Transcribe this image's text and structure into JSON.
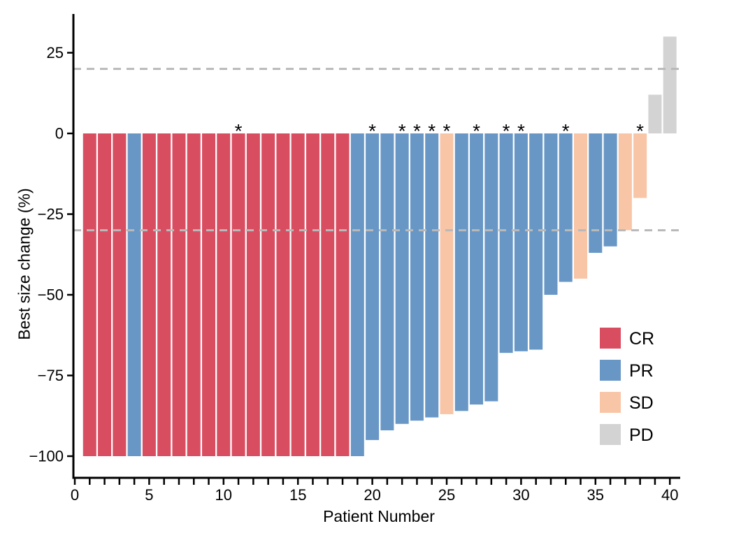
{
  "chart_data": {
    "type": "bar",
    "title": "",
    "xlabel": "Patient Number",
    "ylabel": "Best size change (%)",
    "x_range": [
      0,
      40
    ],
    "x_ticks_labeled": [
      0,
      5,
      10,
      15,
      20,
      25,
      30,
      35,
      40
    ],
    "x_minor_tick_every": 1,
    "y_ticks": [
      25,
      0,
      -25,
      -50,
      -75,
      -100
    ],
    "ylim": [
      -100,
      30
    ],
    "grid": false,
    "annotation_symbol": "*",
    "reference_lines": [
      {
        "y": 20,
        "style": "dashed",
        "color": "#b9b9b9"
      },
      {
        "y": -30,
        "style": "dashed",
        "color": "#b9b9b9"
      }
    ],
    "legend": {
      "position": "right-lower",
      "entries": [
        {
          "label": "CR",
          "color": "#d94d61"
        },
        {
          "label": "PR",
          "color": "#6897c5"
        },
        {
          "label": "SD",
          "color": "#f8c5a7"
        },
        {
          "label": "PD",
          "color": "#d3d3d3"
        }
      ]
    },
    "patients": [
      {
        "patient": 1,
        "value": -100,
        "response": "CR",
        "asterisk": false
      },
      {
        "patient": 2,
        "value": -100,
        "response": "CR",
        "asterisk": false
      },
      {
        "patient": 3,
        "value": -100,
        "response": "CR",
        "asterisk": false
      },
      {
        "patient": 4,
        "value": -100,
        "response": "PR",
        "asterisk": false
      },
      {
        "patient": 5,
        "value": -100,
        "response": "CR",
        "asterisk": false
      },
      {
        "patient": 6,
        "value": -100,
        "response": "CR",
        "asterisk": false
      },
      {
        "patient": 7,
        "value": -100,
        "response": "CR",
        "asterisk": false
      },
      {
        "patient": 8,
        "value": -100,
        "response": "CR",
        "asterisk": false
      },
      {
        "patient": 9,
        "value": -100,
        "response": "CR",
        "asterisk": false
      },
      {
        "patient": 10,
        "value": -100,
        "response": "CR",
        "asterisk": false
      },
      {
        "patient": 11,
        "value": -100,
        "response": "CR",
        "asterisk": true
      },
      {
        "patient": 12,
        "value": -100,
        "response": "CR",
        "asterisk": false
      },
      {
        "patient": 13,
        "value": -100,
        "response": "CR",
        "asterisk": false
      },
      {
        "patient": 14,
        "value": -100,
        "response": "CR",
        "asterisk": false
      },
      {
        "patient": 15,
        "value": -100,
        "response": "CR",
        "asterisk": false
      },
      {
        "patient": 16,
        "value": -100,
        "response": "CR",
        "asterisk": false
      },
      {
        "patient": 17,
        "value": -100,
        "response": "CR",
        "asterisk": false
      },
      {
        "patient": 18,
        "value": -100,
        "response": "CR",
        "asterisk": false
      },
      {
        "patient": 19,
        "value": -100,
        "response": "PR",
        "asterisk": false
      },
      {
        "patient": 20,
        "value": -95,
        "response": "PR",
        "asterisk": true
      },
      {
        "patient": 21,
        "value": -92,
        "response": "PR",
        "asterisk": false
      },
      {
        "patient": 22,
        "value": -90,
        "response": "PR",
        "asterisk": true
      },
      {
        "patient": 23,
        "value": -89,
        "response": "PR",
        "asterisk": true
      },
      {
        "patient": 24,
        "value": -88,
        "response": "PR",
        "asterisk": true
      },
      {
        "patient": 25,
        "value": -87,
        "response": "SD",
        "asterisk": true
      },
      {
        "patient": 26,
        "value": -86,
        "response": "PR",
        "asterisk": false
      },
      {
        "patient": 27,
        "value": -84,
        "response": "PR",
        "asterisk": true
      },
      {
        "patient": 28,
        "value": -83,
        "response": "PR",
        "asterisk": false
      },
      {
        "patient": 29,
        "value": -68,
        "response": "PR",
        "asterisk": true
      },
      {
        "patient": 30,
        "value": -67.5,
        "response": "PR",
        "asterisk": true
      },
      {
        "patient": 31,
        "value": -67,
        "response": "PR",
        "asterisk": false
      },
      {
        "patient": 32,
        "value": -50,
        "response": "PR",
        "asterisk": false
      },
      {
        "patient": 33,
        "value": -46,
        "response": "PR",
        "asterisk": true
      },
      {
        "patient": 34,
        "value": -45,
        "response": "SD",
        "asterisk": false
      },
      {
        "patient": 35,
        "value": -37,
        "response": "PR",
        "asterisk": false
      },
      {
        "patient": 36,
        "value": -35,
        "response": "PR",
        "asterisk": false
      },
      {
        "patient": 37,
        "value": -30,
        "response": "SD",
        "asterisk": false
      },
      {
        "patient": 38,
        "value": -20,
        "response": "SD",
        "asterisk": true
      },
      {
        "patient": 39,
        "value": 12,
        "response": "PD",
        "asterisk": false
      },
      {
        "patient": 40,
        "value": 30,
        "response": "PD",
        "asterisk": false
      }
    ]
  },
  "colors": {
    "background": "#ffffff",
    "axis": "#000000",
    "text": "#000000",
    "reference_line": "#b9b9b9"
  }
}
